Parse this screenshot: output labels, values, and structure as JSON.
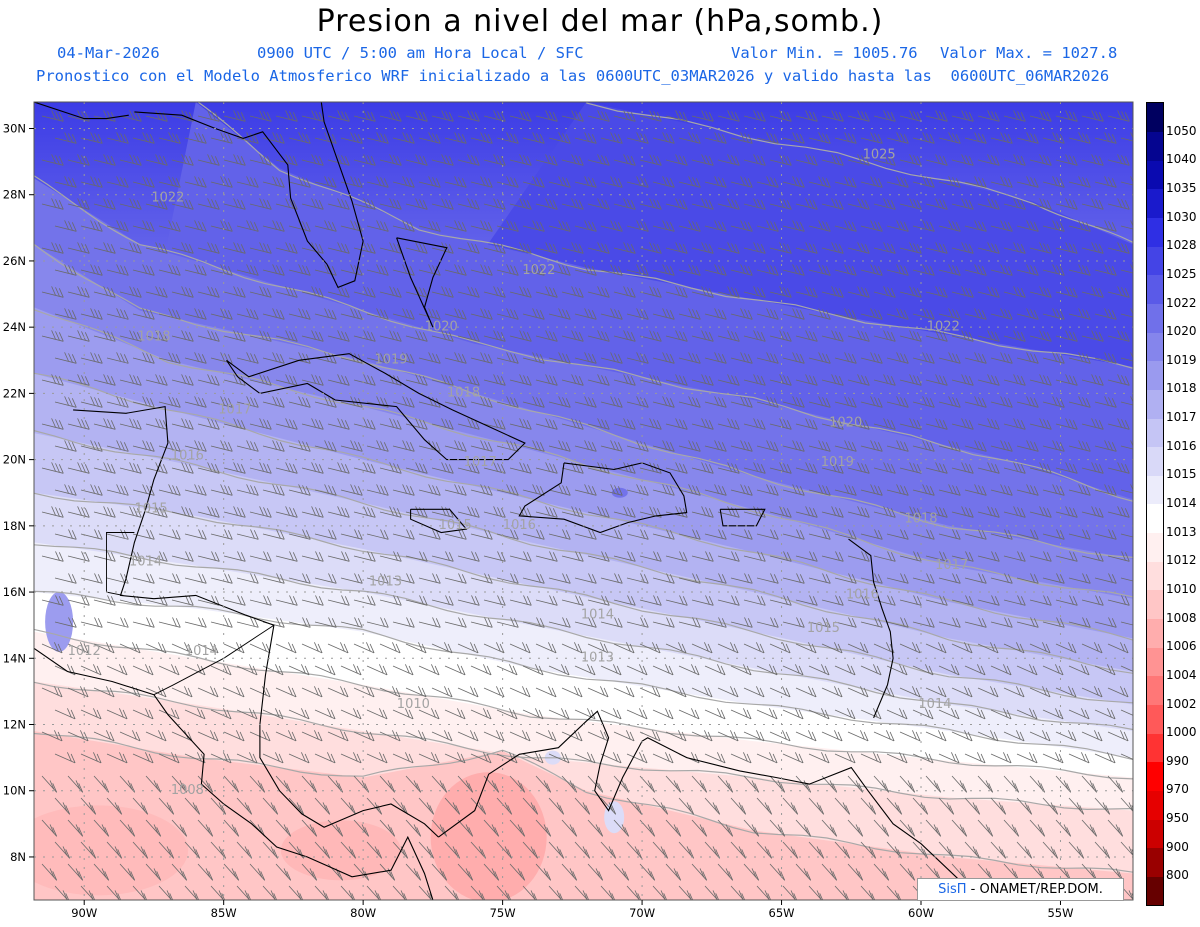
{
  "header": {
    "title": "Presion a nivel del mar (hPa,somb.)",
    "date": "04-Mar-2026",
    "time_info": "0900 UTC / 5:00 am Hora Local / SFC",
    "min_value": "Valor Min. = 1005.76",
    "max_value": "Valor Max. = 1027.8",
    "model_info": "Pronostico con el Modelo Atmosferico WRF inicializado a las 0600UTC_03MAR2026 y valido hasta las  0600UTC_06MAR2026"
  },
  "axes": {
    "lat_labels": [
      "30N",
      "28N",
      "26N",
      "24N",
      "22N",
      "20N",
      "18N",
      "16N",
      "14N",
      "12N",
      "10N",
      "8N"
    ],
    "lon_labels": [
      "90W",
      "85W",
      "80W",
      "75W",
      "70W",
      "65W",
      "60W",
      "55W"
    ],
    "lat_range": [
      6.7,
      30.8
    ],
    "lon_range": [
      -91.8,
      -52.4
    ]
  },
  "colorbar": {
    "levels": [
      "800",
      "900",
      "950",
      "970",
      "990",
      "1000",
      "1002",
      "1004",
      "1006",
      "1008",
      "1010",
      "1012",
      "1013",
      "1014",
      "1015",
      "1016",
      "1017",
      "1018",
      "1019",
      "1020",
      "1022",
      "1025",
      "1028",
      "1030",
      "1035",
      "1040",
      "1050"
    ],
    "colors": [
      "#660000",
      "#990000",
      "#cc0000",
      "#e60000",
      "#ff0000",
      "#ff3333",
      "#ff5959",
      "#ff7777",
      "#ff9393",
      "#ffadad",
      "#ffc6c6",
      "#ffdede",
      "#fff0f0",
      "#ffffff",
      "#ececfb",
      "#d9d9f8",
      "#c5c5f5",
      "#b0b0f2",
      "#9a9aef",
      "#8585ec",
      "#7070ea",
      "#5a5ae8",
      "#4444e6",
      "#2f2fe4",
      "#1a1acc",
      "#0a0ab0",
      "#050590",
      "#000060"
    ]
  },
  "isobar_labels": [
    {
      "text": "1025",
      "lat": 29.1,
      "lon": -61.5
    },
    {
      "text": "1022",
      "lat": 27.8,
      "lon": -87.0
    },
    {
      "text": "1022",
      "lat": 25.6,
      "lon": -73.7
    },
    {
      "text": "1022",
      "lat": 23.9,
      "lon": -59.2
    },
    {
      "text": "1020",
      "lat": 23.9,
      "lon": -77.2
    },
    {
      "text": "1020",
      "lat": 21.0,
      "lon": -62.7
    },
    {
      "text": "1019",
      "lat": 22.9,
      "lon": -79.0
    },
    {
      "text": "1019",
      "lat": 19.8,
      "lon": -63.0
    },
    {
      "text": "1018",
      "lat": 23.6,
      "lon": -87.5
    },
    {
      "text": "1018",
      "lat": 21.9,
      "lon": -76.4
    },
    {
      "text": "1018",
      "lat": 18.1,
      "lon": -60.0
    },
    {
      "text": "1017",
      "lat": 21.4,
      "lon": -84.6
    },
    {
      "text": "1017",
      "lat": 19.8,
      "lon": -75.8
    },
    {
      "text": "1017",
      "lat": 16.7,
      "lon": -58.9
    },
    {
      "text": "1016",
      "lat": 20.0,
      "lon": -86.3
    },
    {
      "text": "1016",
      "lat": 17.9,
      "lon": -74.4
    },
    {
      "text": "1016",
      "lat": 15.8,
      "lon": -62.1
    },
    {
      "text": "1015",
      "lat": 18.4,
      "lon": -87.6
    },
    {
      "text": "1015",
      "lat": 17.9,
      "lon": -76.7
    },
    {
      "text": "1015",
      "lat": 14.8,
      "lon": -63.5
    },
    {
      "text": "1014",
      "lat": 16.8,
      "lon": -87.8
    },
    {
      "text": "1014",
      "lat": 15.2,
      "lon": -71.6
    },
    {
      "text": "1014",
      "lat": 14.1,
      "lon": -85.8
    },
    {
      "text": "1014",
      "lat": 12.5,
      "lon": -59.5
    },
    {
      "text": "1013",
      "lat": 16.2,
      "lon": -79.2
    },
    {
      "text": "1013",
      "lat": 13.9,
      "lon": -71.6
    },
    {
      "text": "1012",
      "lat": 14.1,
      "lon": -90.0
    },
    {
      "text": "1010",
      "lat": 12.5,
      "lon": -78.2
    },
    {
      "text": "1008",
      "lat": 9.9,
      "lon": -86.3
    }
  ],
  "field": {
    "min": 1005.76,
    "max": 1027.8,
    "unit": "hPa",
    "variable": "Presion a nivel del mar"
  },
  "credit": {
    "brand": "SisΠ",
    "text": " - ONAMET/REP.DOM."
  }
}
